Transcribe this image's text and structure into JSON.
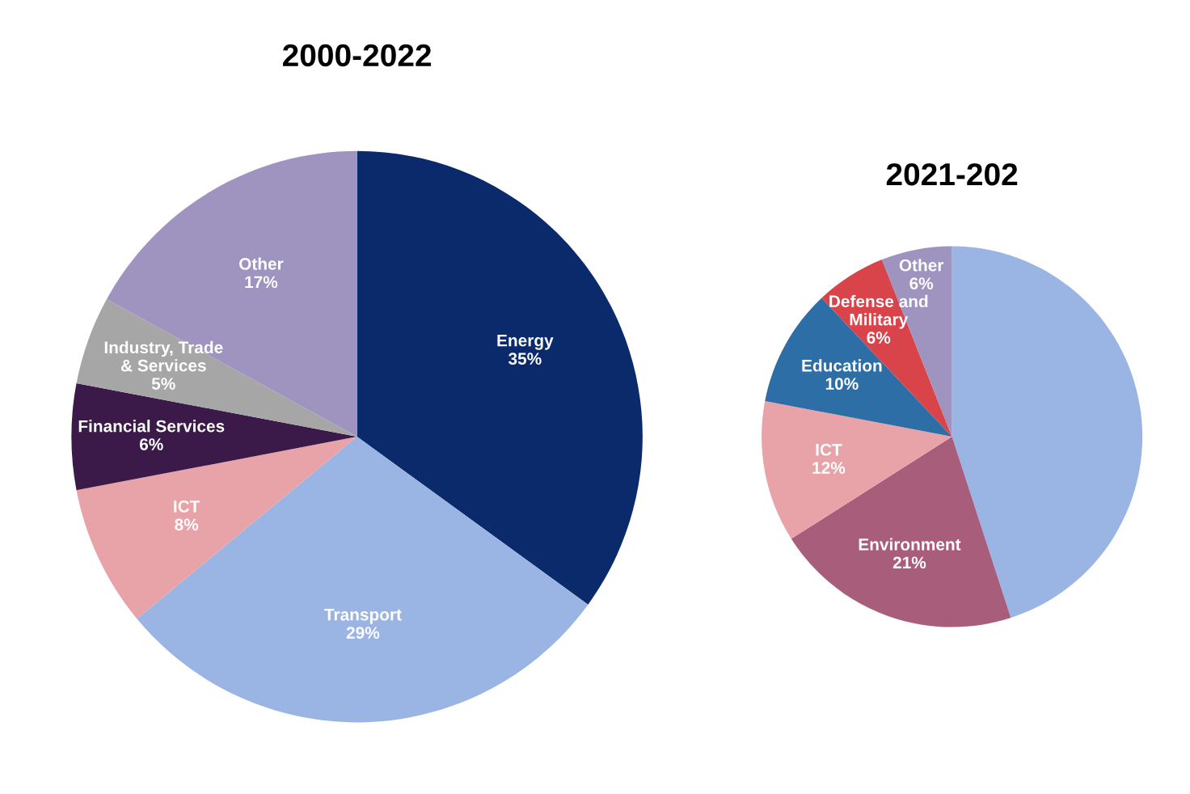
{
  "chart_data": [
    {
      "type": "pie",
      "title": "2000-2022",
      "categories": [
        "Energy",
        "Transport",
        "ICT",
        "Financial Services",
        "Industry, Trade\n& Services",
        "Other"
      ],
      "values": [
        35,
        29,
        8,
        6,
        5,
        17
      ],
      "value_labels": [
        "35%",
        "29%",
        "8%",
        "6%",
        "5%",
        "17%"
      ],
      "colors": [
        "#0a2a6b",
        "#9ab5e3",
        "#e8a3a8",
        "#3b1a4a",
        "#a6a6a6",
        "#9e94bf"
      ]
    },
    {
      "type": "pie",
      "title": "2021-202",
      "categories": [
        null,
        "Environment",
        "ICT",
        "Education",
        "Defense and\nMilitary",
        "Other"
      ],
      "values": [
        45,
        21,
        12,
        10,
        6,
        6
      ],
      "value_labels": [
        null,
        "21%",
        "12%",
        "10%",
        "6%",
        "6%"
      ],
      "colors": [
        "#9ab5e3",
        "#a85e7a",
        "#e8a3a8",
        "#2e6ea6",
        "#d9434a",
        "#9e94bf"
      ]
    }
  ]
}
